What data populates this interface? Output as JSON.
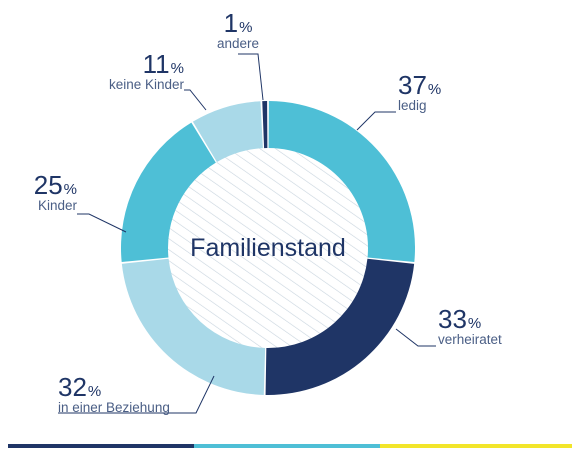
{
  "chart_data": {
    "type": "pie",
    "title": "Familienstand",
    "slices": [
      {
        "label": "ledig",
        "value": 37,
        "color": "#4ebfd6"
      },
      {
        "label": "verheiratet",
        "value": 33,
        "color": "#1f3566"
      },
      {
        "label": "in einer Beziehung",
        "value": 32,
        "color": "#a9d9e8"
      },
      {
        "label": "Kinder",
        "value": 25,
        "color": "#4ebfd6"
      },
      {
        "label": "keine Kinder",
        "value": 11,
        "color": "#a9d9e8"
      },
      {
        "label": "andere",
        "value": 1,
        "color": "#1f3566"
      }
    ],
    "percent_sign": "%"
  },
  "footer_colors": [
    "#1f3566",
    "#4ebfd6",
    "#f2e52a"
  ]
}
